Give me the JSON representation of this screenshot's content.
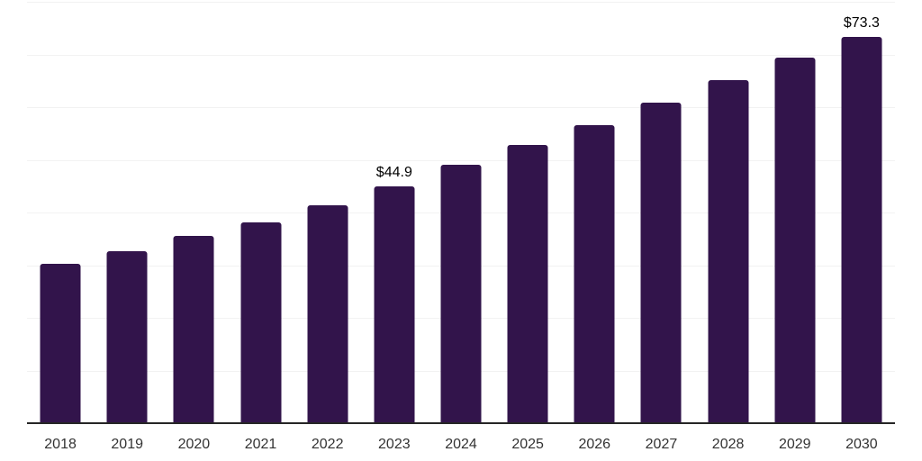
{
  "chart_data": {
    "type": "bar",
    "title": "",
    "xlabel": "",
    "ylabel": "",
    "categories": [
      "2018",
      "2019",
      "2020",
      "2021",
      "2022",
      "2023",
      "2024",
      "2025",
      "2026",
      "2027",
      "2028",
      "2029",
      "2030"
    ],
    "values": [
      30.3,
      32.6,
      35.5,
      38.2,
      41.3,
      44.9,
      49.1,
      52.8,
      56.5,
      60.9,
      65.1,
      69.4,
      73.3
    ],
    "annotations": [
      {
        "category": "2023",
        "text": "$44.9"
      },
      {
        "category": "2030",
        "text": "$73.3"
      }
    ],
    "ylim": [
      0,
      80
    ],
    "gridline_step": 10,
    "grid": "horizontal-only",
    "legend": "none",
    "colors": {
      "bar": "#32144B",
      "gridline": "#f2f2f2",
      "axis_line": "#262626",
      "tick_label": "#333333",
      "annotation_text": "#000000",
      "background": "#ffffff"
    }
  }
}
